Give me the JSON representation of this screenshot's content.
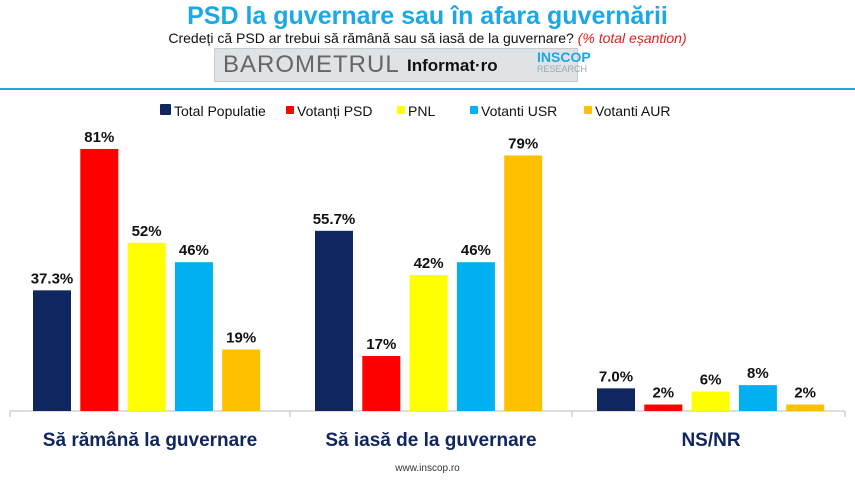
{
  "header": {
    "title": "PSD la guvernare sau în afara guvernării",
    "question": "Credeți că PSD ar trebui să rămână sau să iasă de la guvernare?",
    "note": "(% total eșantion)",
    "logo_barometru": "BAROMETRUL",
    "logo_informat": "Informat·ro",
    "logo_inscop": "INSCOP",
    "logo_research": "RESEARCH"
  },
  "footer": "www.inscop.ro",
  "chart_data": {
    "type": "bar",
    "categories": [
      "Să rămână la guvernare",
      "Să iasă de la guvernare",
      "NS/NR"
    ],
    "legend_position": "top",
    "grid": false,
    "ylim": [
      0,
      100
    ],
    "series": [
      {
        "name": "Total Populatie",
        "color": "#0f2660",
        "values": [
          37.3,
          55.7,
          7.0
        ],
        "labels": [
          "37.3%",
          "55.7%",
          "7.0%"
        ]
      },
      {
        "name": "Votanți PSD",
        "color": "#ff0000",
        "values": [
          81,
          17,
          2
        ],
        "labels": [
          "81%",
          "17%",
          "2%"
        ]
      },
      {
        "name": "PNL",
        "color": "#ffff00",
        "values": [
          52,
          42,
          6
        ],
        "labels": [
          "52%",
          "42%",
          "6%"
        ]
      },
      {
        "name": "Votanti USR",
        "color": "#00b0f0",
        "values": [
          46,
          46,
          8
        ],
        "labels": [
          "46%",
          "46%",
          "8%"
        ]
      },
      {
        "name": "Votanti AUR",
        "color": "#ffc000",
        "values": [
          19,
          79,
          2
        ],
        "labels": [
          "19%",
          "79%",
          "2%"
        ]
      }
    ]
  }
}
